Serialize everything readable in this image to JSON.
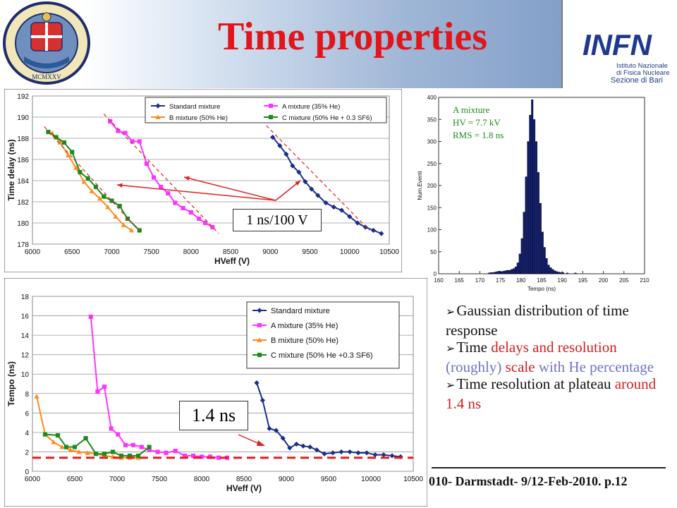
{
  "slide": {
    "title": "Time properties",
    "footer": "010- Darmstadt- 9/12-Feb-2010. p.12",
    "logo_right": {
      "line1": "Istituto Nazionale",
      "line2": "di Fisica Nucleare",
      "line3": "Sezione di Bari",
      "mark": "INFN"
    },
    "logo_left": {
      "ring_text": "SIGILLUM UNIVERSITATIS BARENSIS",
      "year": "MCMXXV"
    }
  },
  "bullets": [
    {
      "parts": [
        {
          "text": "Gaussian distribution of time response",
          "style": "normal"
        }
      ]
    },
    {
      "parts": [
        {
          "text": "Time ",
          "style": "normal"
        },
        {
          "text": "delays and resolution",
          "style": "red"
        },
        {
          "text": " (roughly) ",
          "style": "blue"
        },
        {
          "text": "scale",
          "style": "red"
        },
        {
          "text": " with He percentage",
          "style": "blue"
        }
      ]
    },
    {
      "parts": [
        {
          "text": "Time resolution at plateau ",
          "style": "normal"
        },
        {
          "text": "around 1.4 ns",
          "style": "red"
        }
      ]
    }
  ],
  "callouts": {
    "slope": "1 ns/100 V",
    "resolution": "1.4 ns"
  },
  "colors": {
    "title": "#e0161b",
    "standard": "#1a2f8c",
    "a_mixture": "#ff33ff",
    "b_mixture": "#ff8c1a",
    "c_mixture": "#1a8c1a",
    "histogram": "#0d1a6e",
    "annotation_green": "#1a8c1a"
  },
  "chart_data": [
    {
      "type": "line",
      "xlabel": "HVeff (V)",
      "ylabel": "Time delay (ns)",
      "xlim": [
        6000,
        10500
      ],
      "ylim": [
        178,
        192
      ],
      "xticks": [
        6000,
        6500,
        7000,
        7500,
        8000,
        8500,
        9000,
        9500,
        10000,
        10500
      ],
      "yticks": [
        178,
        180,
        182,
        184,
        186,
        188,
        190,
        192
      ],
      "grid": true,
      "legend": "top-right",
      "series": [
        {
          "name": "Standard mixture",
          "color": "#1a2f8c",
          "marker": "diamond",
          "x": [
            9030,
            9120,
            9200,
            9280,
            9360,
            9440,
            9520,
            9600,
            9700,
            9800,
            9900,
            10000,
            10100,
            10200,
            10300,
            10400
          ],
          "y": [
            188.1,
            187.3,
            186.5,
            185.4,
            184.8,
            183.9,
            183.2,
            182.6,
            181.9,
            181.5,
            181.2,
            180.6,
            180.0,
            179.6,
            179.3,
            179.0
          ]
        },
        {
          "name": "A mixture (35% He)",
          "color": "#ff33ff",
          "marker": "square",
          "x": [
            6980,
            7080,
            7170,
            7260,
            7350,
            7440,
            7530,
            7620,
            7710,
            7800,
            7900,
            8000,
            8100,
            8180,
            8270
          ],
          "y": [
            189.6,
            188.7,
            188.5,
            187.7,
            187.7,
            185.6,
            184.3,
            183.4,
            182.8,
            181.9,
            181.4,
            181.0,
            180.4,
            180.0,
            179.6
          ]
        },
        {
          "name": "B mixture (50% He)",
          "color": "#ff8c1a",
          "marker": "triangle",
          "x": [
            6250,
            6350,
            6450,
            6550,
            6650,
            6750,
            6850,
            6950,
            7050,
            7150,
            7250
          ],
          "y": [
            188.5,
            187.6,
            186.4,
            185.2,
            183.9,
            183.0,
            182.3,
            181.5,
            180.6,
            179.8,
            179.3
          ]
        },
        {
          "name": "C mixture (50% He + 0.3 SF6)",
          "color": "#1a8c1a",
          "marker": "square",
          "x": [
            6200,
            6300,
            6400,
            6500,
            6600,
            6700,
            6800,
            6900,
            7000,
            7100,
            7200,
            7350
          ],
          "y": [
            188.6,
            188.1,
            187.6,
            186.7,
            184.8,
            184.2,
            183.4,
            182.5,
            182.1,
            181.6,
            180.4,
            179.3
          ]
        }
      ]
    },
    {
      "type": "bar",
      "xlabel": "Tempo (ns)",
      "ylabel": "Num.Eventi",
      "xlim": [
        160,
        210
      ],
      "ylim": [
        0,
        400
      ],
      "xticks": [
        160,
        165,
        170,
        175,
        180,
        185,
        190,
        195,
        200,
        205,
        210
      ],
      "yticks": [
        0,
        50,
        100,
        150,
        200,
        250,
        300,
        350,
        400
      ],
      "annotations": [
        "A mixture",
        "HV = 7.7 kV",
        "RMS = 1.8 ns"
      ],
      "bin_width": 0.5,
      "bins_x": [
        172.0,
        172.5,
        173.0,
        173.5,
        174.0,
        174.5,
        175.0,
        175.5,
        176.0,
        176.5,
        177.0,
        177.5,
        178.0,
        178.5,
        179.0,
        179.5,
        180.0,
        180.5,
        181.0,
        181.5,
        182.0,
        182.5,
        183.0,
        183.5,
        184.0,
        184.5,
        185.0,
        185.5,
        186.0,
        186.5,
        187.0,
        187.5,
        188.0,
        188.5,
        189.0,
        189.5,
        190.0,
        191.0,
        193.0
      ],
      "bins_y": [
        2,
        3,
        3,
        4,
        5,
        6,
        5,
        6,
        7,
        8,
        8,
        10,
        12,
        16,
        25,
        45,
        80,
        140,
        220,
        300,
        360,
        395,
        350,
        300,
        230,
        160,
        95,
        60,
        35,
        20,
        14,
        10,
        7,
        5,
        4,
        3,
        3,
        2,
        2
      ]
    },
    {
      "type": "line",
      "xlabel": "HVeff (V)",
      "ylabel": "Tempo (ns)",
      "xlim": [
        6000,
        10500
      ],
      "ylim": [
        0,
        18
      ],
      "xticks": [
        6000,
        6500,
        7000,
        7500,
        8000,
        8500,
        9000,
        9500,
        10000,
        10500
      ],
      "yticks": [
        0,
        2,
        4,
        6,
        8,
        10,
        12,
        14,
        16,
        18
      ],
      "grid": true,
      "legend": "top-right",
      "reference_line": 1.4,
      "series": [
        {
          "name": "Standard mixture",
          "color": "#1a2f8c",
          "marker": "diamond",
          "x": [
            8650,
            8720,
            8800,
            8880,
            8960,
            9040,
            9120,
            9200,
            9280,
            9360,
            9450,
            9550,
            9650,
            9750,
            9850,
            9950,
            10050,
            10150,
            10250,
            10350
          ],
          "y": [
            9.1,
            7.3,
            4.4,
            4.2,
            3.4,
            2.4,
            2.8,
            2.6,
            2.5,
            2.2,
            1.8,
            1.9,
            2.0,
            2.0,
            1.9,
            1.9,
            1.7,
            1.7,
            1.6,
            1.5
          ]
        },
        {
          "name": "A mixture (35% He)",
          "color": "#ff33ff",
          "marker": "square",
          "x": [
            6690,
            6770,
            6850,
            6930,
            7010,
            7100,
            7190,
            7290,
            7380,
            7480,
            7580,
            7690,
            7800,
            7900,
            8000,
            8100,
            8200,
            8300
          ],
          "y": [
            15.9,
            8.2,
            8.7,
            4.4,
            3.8,
            2.7,
            2.7,
            2.5,
            2.2,
            2.0,
            1.9,
            2.1,
            1.6,
            1.6,
            1.5,
            1.5,
            1.4,
            1.4
          ]
        },
        {
          "name": "B mixture (50% He)",
          "color": "#ff8c1a",
          "marker": "triangle",
          "x": [
            6050,
            6150,
            6250,
            6350,
            6450,
            6550,
            6650,
            6750,
            6850,
            6950,
            7050,
            7150,
            7250
          ],
          "y": [
            7.7,
            3.8,
            3.0,
            2.5,
            2.2,
            2.0,
            1.9,
            1.8,
            1.6,
            1.5,
            1.4,
            1.4,
            1.4
          ]
        },
        {
          "name": "C mixture (50% He +0.3 SF6)",
          "color": "#1a8c1a",
          "marker": "square",
          "x": [
            6150,
            6300,
            6400,
            6500,
            6630,
            6750,
            6850,
            6950,
            7050,
            7150,
            7250,
            7380
          ],
          "y": [
            3.8,
            3.7,
            2.5,
            2.5,
            3.4,
            1.8,
            1.8,
            2.0,
            1.6,
            1.6,
            1.6,
            2.5
          ]
        }
      ]
    }
  ]
}
